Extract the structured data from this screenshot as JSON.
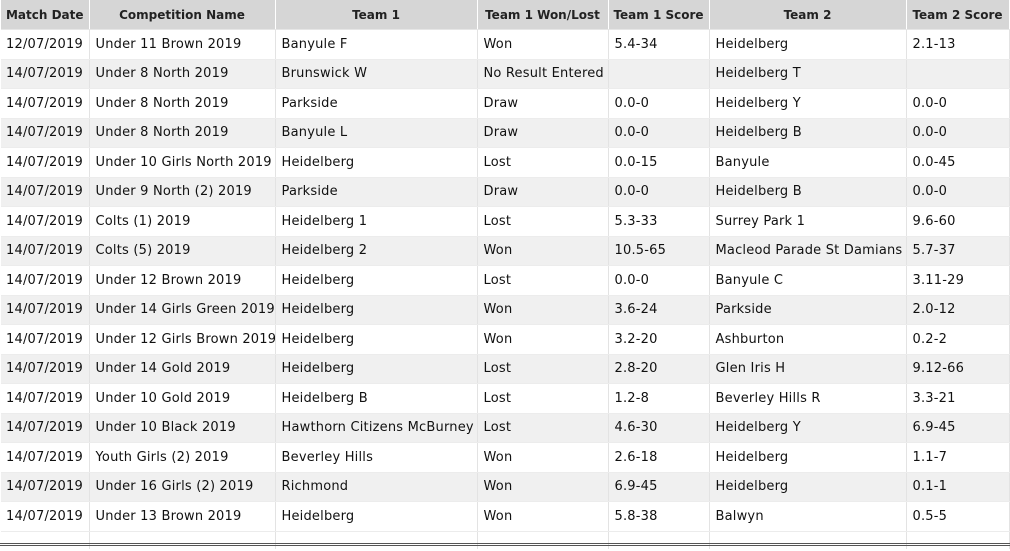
{
  "headers": {
    "match_date": "Match Date",
    "competition_name": "Competition Name",
    "team1": "Team 1",
    "team1_result": "Team 1 Won/Lost",
    "team1_score": "Team 1 Score",
    "team2": "Team 2",
    "team2_score": "Team 2 Score"
  },
  "rows": [
    [
      "12/07/2019",
      "Under 11 Brown 2019",
      "Banyule F",
      "Won",
      "5.4-34",
      "Heidelberg",
      "2.1-13"
    ],
    [
      "14/07/2019",
      "Under 8 North 2019",
      "Brunswick W",
      "No Result Entered",
      "",
      "Heidelberg T",
      ""
    ],
    [
      "14/07/2019",
      "Under 8 North 2019",
      "Parkside",
      "Draw",
      "0.0-0",
      "Heidelberg Y",
      "0.0-0"
    ],
    [
      "14/07/2019",
      "Under 8 North 2019",
      "Banyule L",
      "Draw",
      "0.0-0",
      "Heidelberg B",
      "0.0-0"
    ],
    [
      "14/07/2019",
      "Under 10 Girls North 2019",
      "Heidelberg",
      "Lost",
      "0.0-15",
      "Banyule",
      "0.0-45"
    ],
    [
      "14/07/2019",
      "Under 9 North (2) 2019",
      "Parkside",
      "Draw",
      "0.0-0",
      "Heidelberg B",
      "0.0-0"
    ],
    [
      "14/07/2019",
      "Colts (1) 2019",
      "Heidelberg 1",
      "Lost",
      "5.3-33",
      "Surrey Park 1",
      "9.6-60"
    ],
    [
      "14/07/2019",
      "Colts (5) 2019",
      "Heidelberg 2",
      "Won",
      "10.5-65",
      "Macleod Parade St Damians",
      "5.7-37"
    ],
    [
      "14/07/2019",
      "Under 12 Brown 2019",
      "Heidelberg",
      "Lost",
      "0.0-0",
      "Banyule C",
      "3.11-29"
    ],
    [
      "14/07/2019",
      "Under 14 Girls Green 2019",
      "Heidelberg",
      "Won",
      "3.6-24",
      "Parkside",
      "2.0-12"
    ],
    [
      "14/07/2019",
      "Under 12 Girls Brown 2019",
      "Heidelberg",
      "Won",
      "3.2-20",
      "Ashburton",
      "0.2-2"
    ],
    [
      "14/07/2019",
      "Under 14 Gold 2019",
      "Heidelberg",
      "Lost",
      "2.8-20",
      "Glen Iris H",
      "9.12-66"
    ],
    [
      "14/07/2019",
      "Under 10 Gold 2019",
      "Heidelberg B",
      "Lost",
      "1.2-8",
      "Beverley Hills R",
      "3.3-21"
    ],
    [
      "14/07/2019",
      "Under 10 Black 2019",
      "Hawthorn Citizens McBurney",
      "Lost",
      "4.6-30",
      "Heidelberg Y",
      "6.9-45"
    ],
    [
      "14/07/2019",
      "Youth Girls (2) 2019",
      "Beverley Hills",
      "Won",
      "2.6-18",
      "Heidelberg",
      "1.1-7"
    ],
    [
      "14/07/2019",
      "Under 16 Girls (2) 2019",
      "Richmond",
      "Won",
      "6.9-45",
      "Heidelberg",
      "0.1-1"
    ],
    [
      "14/07/2019",
      "Under 13 Brown 2019",
      "Heidelberg",
      "Won",
      "5.8-38",
      "Balwyn",
      "0.5-5"
    ]
  ]
}
